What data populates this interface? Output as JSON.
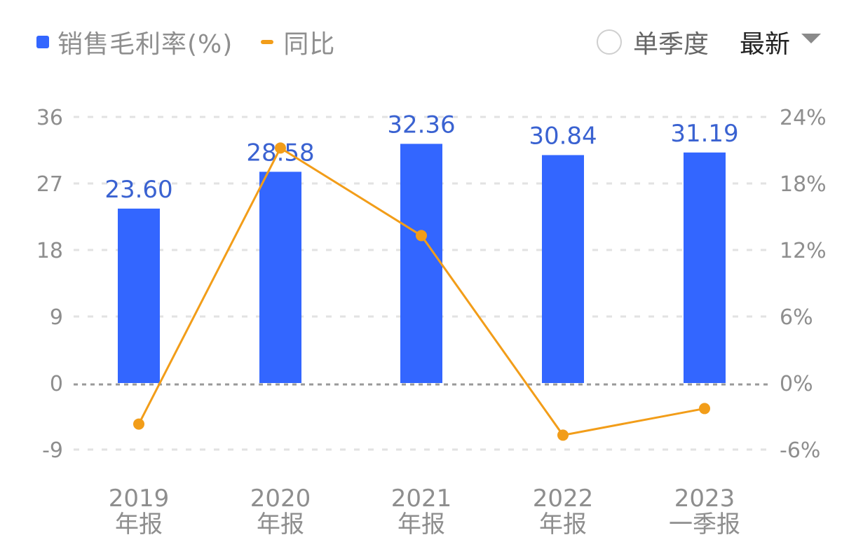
{
  "legend": {
    "items": [
      {
        "label": "销售毛利率(%)",
        "type": "bar",
        "color": "#3366ff"
      },
      {
        "label": "同比",
        "type": "line",
        "color": "#f29d19"
      }
    ]
  },
  "controls": {
    "single_quarter_label": "单季度",
    "single_quarter_checked": false,
    "period_dropdown_label": "最新"
  },
  "axes": {
    "left_ticks": [
      "36",
      "27",
      "18",
      "9",
      "0",
      "-9"
    ],
    "right_ticks": [
      "24%",
      "18%",
      "12%",
      "6%",
      "0%",
      "-6%"
    ]
  },
  "categories": [
    {
      "year": "2019",
      "period": "年报"
    },
    {
      "year": "2020",
      "period": "年报"
    },
    {
      "year": "2021",
      "period": "年报"
    },
    {
      "year": "2022",
      "period": "年报"
    },
    {
      "year": "2023",
      "period": "一季报"
    }
  ],
  "bar_labels": [
    "23.60",
    "28.58",
    "32.36",
    "30.84",
    "31.19"
  ],
  "chart_data": {
    "type": "bar",
    "title": "",
    "categories": [
      "2019年报",
      "2020年报",
      "2021年报",
      "2022年报",
      "2023一季报"
    ],
    "series": [
      {
        "name": "销售毛利率(%)",
        "type": "bar",
        "axis": "left",
        "color": "#3366ff",
        "values": [
          23.6,
          28.58,
          32.36,
          30.84,
          31.19
        ]
      },
      {
        "name": "同比",
        "type": "line",
        "axis": "right",
        "color": "#f29d19",
        "unit": "%",
        "values": [
          -3.7,
          21.2,
          13.3,
          -4.7,
          -2.3
        ]
      }
    ],
    "xlabel": "",
    "ylabel": "",
    "ylim": [
      -9,
      36
    ],
    "y_ticks": [
      -9,
      0,
      9,
      18,
      27,
      36
    ],
    "y2lim": [
      -6,
      24
    ],
    "y2_ticks": [
      -6,
      0,
      6,
      12,
      18,
      24
    ],
    "grid": true,
    "legend_position": "top-left"
  }
}
